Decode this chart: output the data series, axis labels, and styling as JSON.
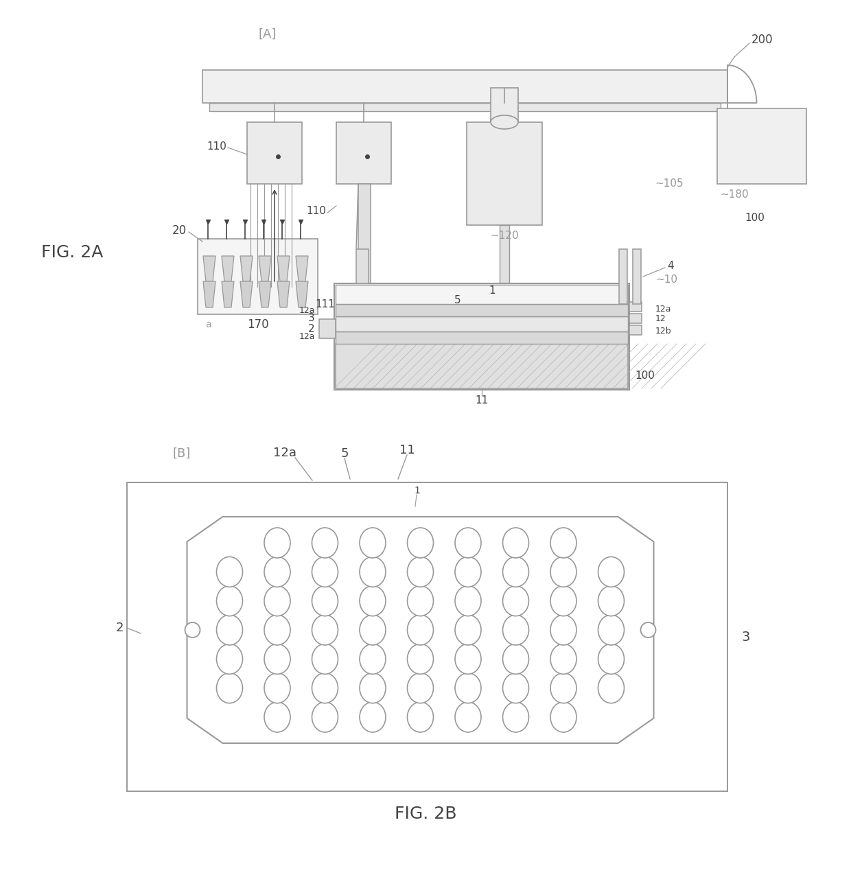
{
  "bg_color": "#ffffff",
  "line_color": "#777777",
  "medium_gray": "#999999",
  "dark_gray": "#444444",
  "light_gray": "#cccccc",
  "fig_label_A": "[A]",
  "fig_label_B": "[B]",
  "fig_2A_label": "FIG. 2A",
  "fig_2B_label": "FIG. 2B"
}
